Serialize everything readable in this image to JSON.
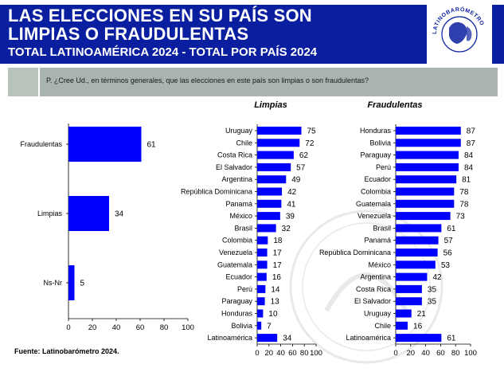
{
  "header": {
    "title_line1": "LAS ELECCIONES EN SU PAÍS SON",
    "title_line2": "LIMPIAS O FRAUDULENTAS",
    "subtitle": "TOTAL LATINOAMÉRICA 2024 - TOTAL POR PAÍS 2024",
    "logo_icon": "latinobarometro-globe-icon",
    "logo_text": "LATINOBARÓMETRO",
    "band_color": "#0a1fa0"
  },
  "question": {
    "text": "P. ¿Cree Ud., en términos generales, que las elecciones en este país son limpias o son fraudulentas?"
  },
  "source": "Fuente: Latinobarómetro 2024.",
  "bar_color": "#0000ff",
  "chart_data": [
    {
      "type": "bar",
      "orientation": "horizontal",
      "title": "",
      "categories": [
        "Fraudulentas",
        "Limpias",
        "Ns-Nr"
      ],
      "values": [
        61,
        34,
        5
      ],
      "xlim": [
        0,
        100
      ],
      "xticks": [
        0,
        20,
        40,
        60,
        80,
        100
      ],
      "grid": false
    },
    {
      "type": "bar",
      "orientation": "horizontal",
      "title": "Limpias",
      "categories": [
        "Uruguay",
        "Chile",
        "Costa Rica",
        "El Salvador",
        "Argentina",
        "República Dominicana",
        "Panamá",
        "México",
        "Brasil",
        "Colombia",
        "Venezuela",
        "Guatemala",
        "Ecuador",
        "Perú",
        "Paraguay",
        "Honduras",
        "Bolivia",
        "Latinoamérica"
      ],
      "values": [
        75,
        72,
        62,
        57,
        49,
        42,
        41,
        39,
        32,
        18,
        17,
        17,
        16,
        14,
        13,
        10,
        7,
        34
      ],
      "xlim": [
        0,
        100
      ],
      "xticks": [
        0,
        20,
        40,
        60,
        80,
        100
      ],
      "grid": false
    },
    {
      "type": "bar",
      "orientation": "horizontal",
      "title": "Fraudulentas",
      "categories": [
        "Honduras",
        "Bolivia",
        "Paraguay",
        "Perú",
        "Ecuador",
        "Colombia",
        "Guatemala",
        "Venezuela",
        "Brasil",
        "Panamá",
        "República Dominicana",
        "México",
        "Argentina",
        "Costa Rica",
        "El Salvador",
        "Uruguay",
        "Chile",
        "Latinoamérica"
      ],
      "values": [
        87,
        87,
        84,
        84,
        81,
        78,
        78,
        73,
        61,
        57,
        56,
        53,
        42,
        35,
        35,
        21,
        16,
        61
      ],
      "xlim": [
        0,
        100
      ],
      "xticks": [
        0,
        20,
        40,
        60,
        80,
        100
      ],
      "grid": false
    }
  ]
}
